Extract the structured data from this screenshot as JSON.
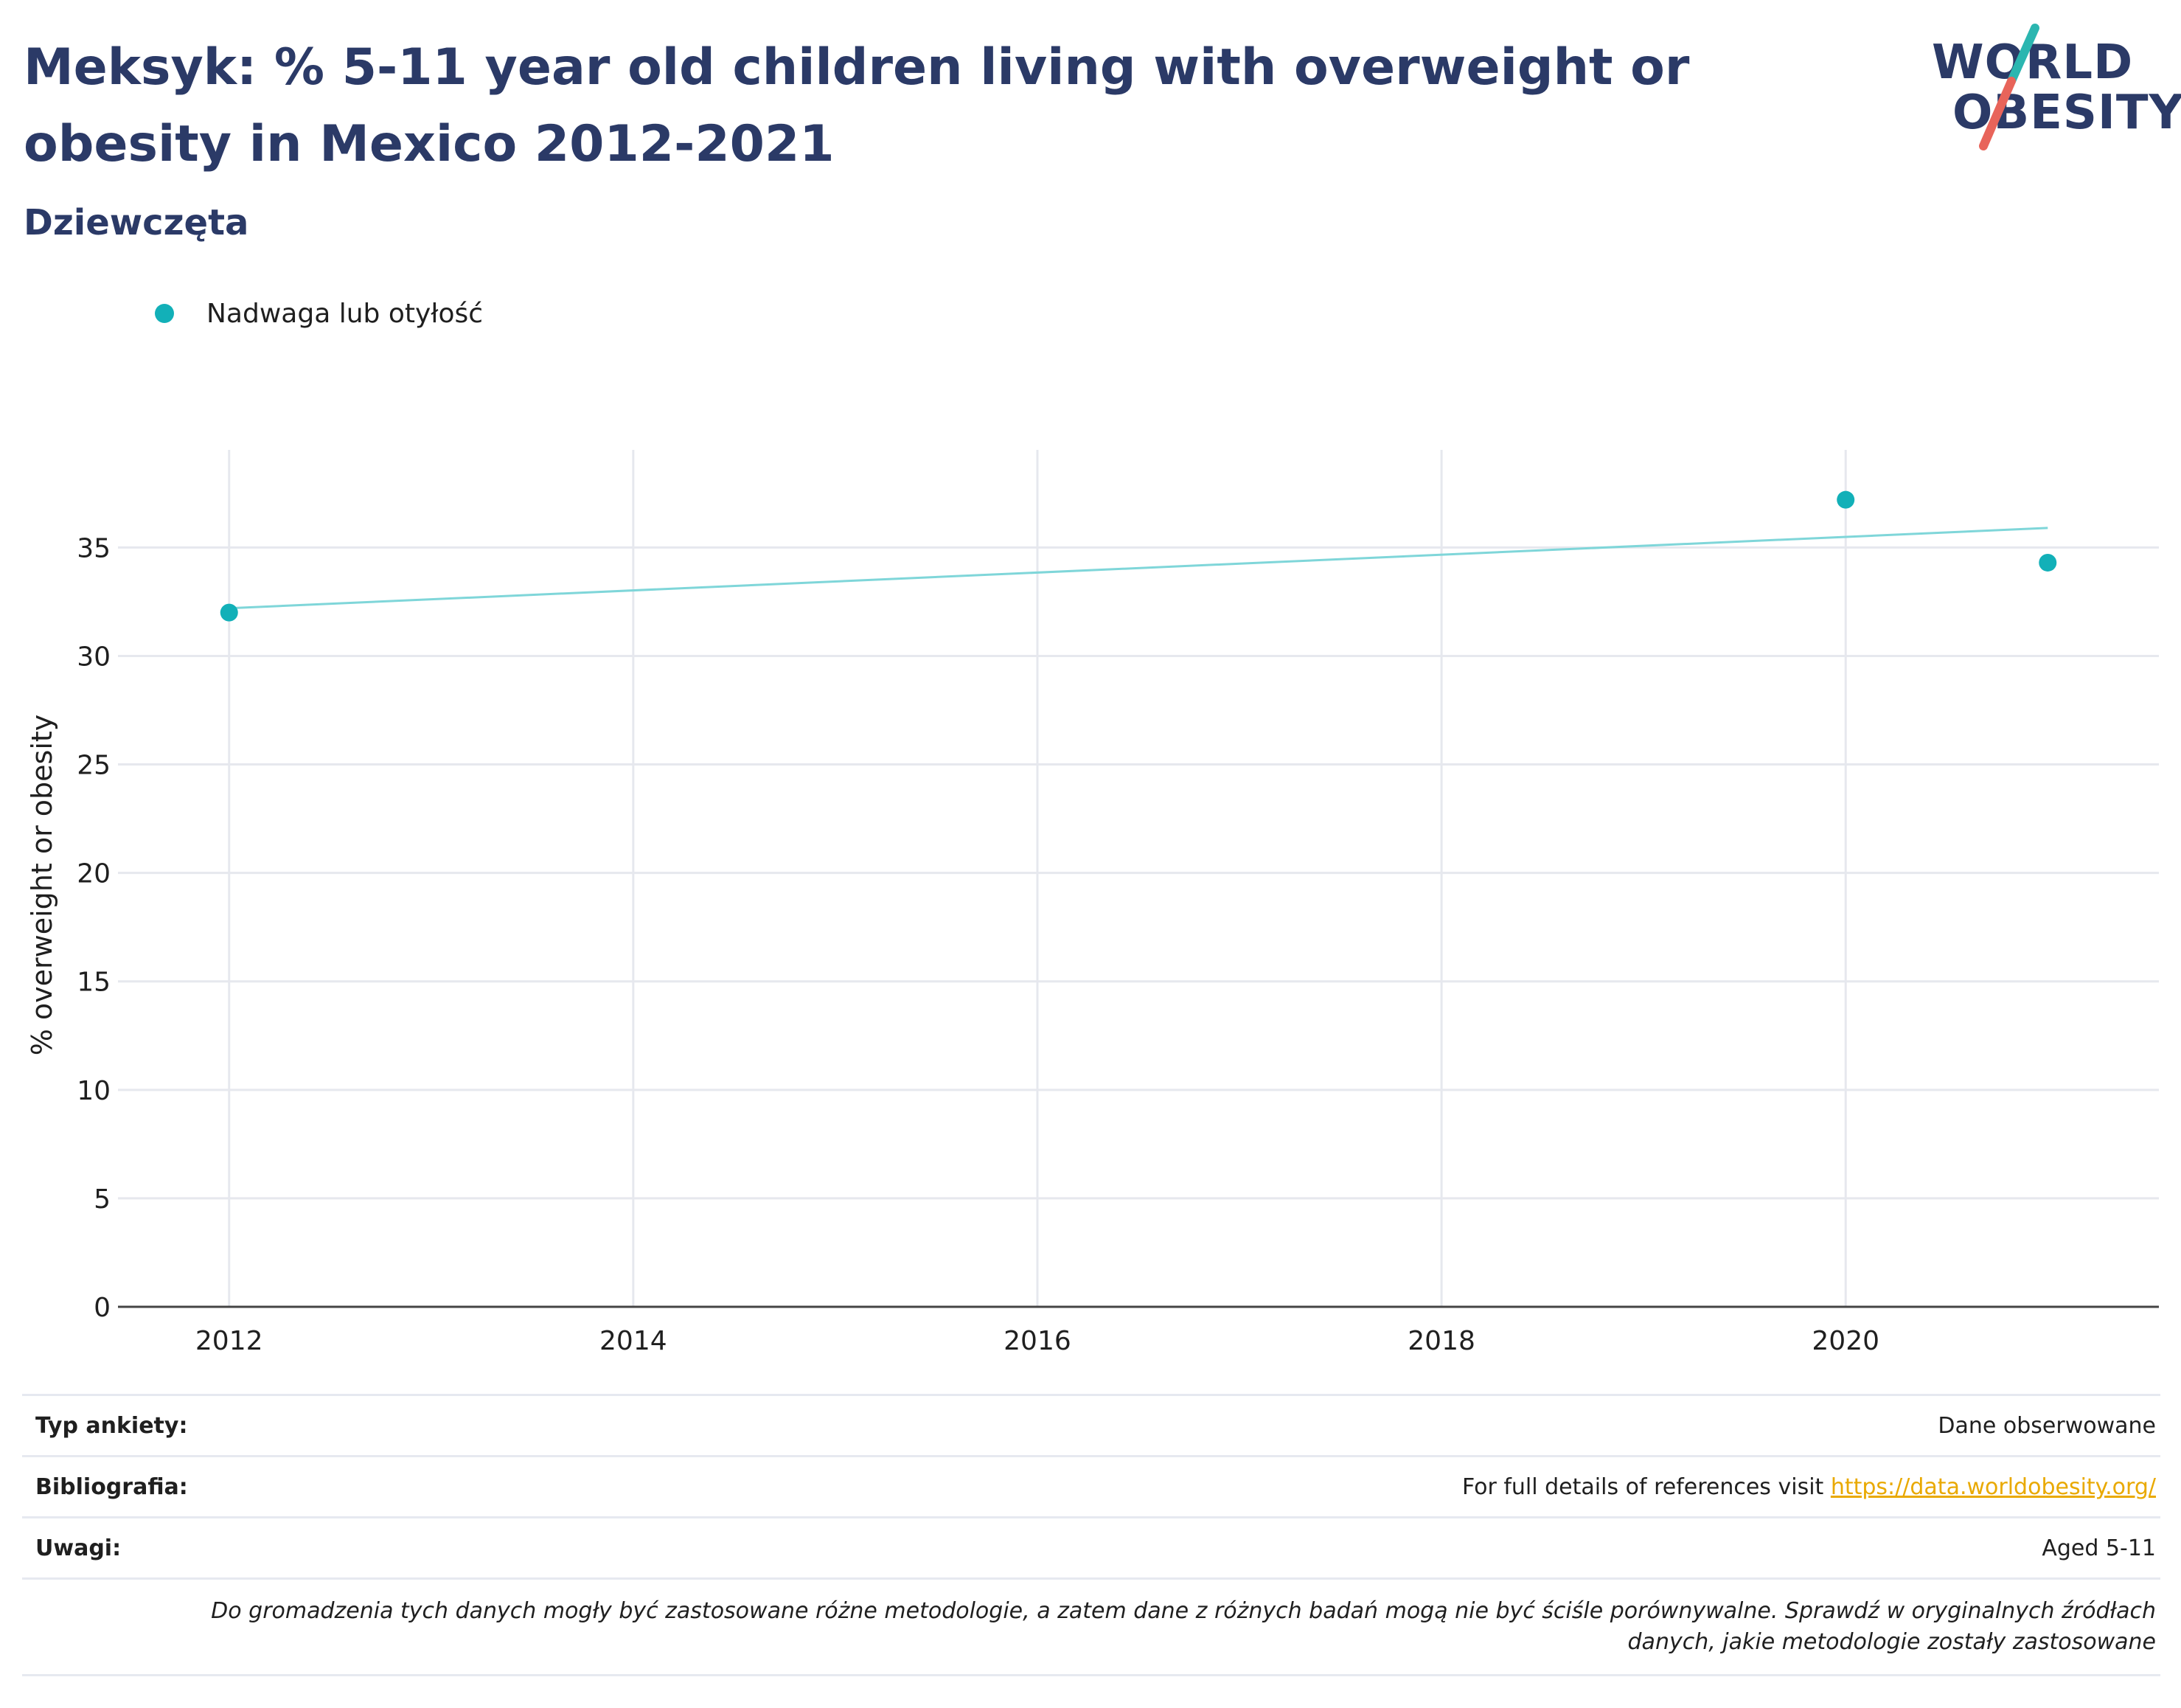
{
  "header": {
    "title": "Meksyk: % 5-11 year old children living with overweight or obesity in Mexico 2012-2021",
    "subtitle": "Dziewczęta"
  },
  "logo": {
    "line1": "WORLD",
    "line2": "OBESITY"
  },
  "colors": {
    "title": "#2b3a67",
    "series": "#12b0b8",
    "trend": "#7fd6d9",
    "link": "#e9a900",
    "slash_top": "#2bb6b0",
    "slash_bottom": "#e8645a"
  },
  "chart_data": {
    "type": "scatter",
    "title": "",
    "xlabel": "",
    "ylabel": "% overweight or obesity",
    "xlim": [
      2011.45,
      2021.55
    ],
    "ylim": [
      0,
      39.5
    ],
    "x_ticks": [
      2012,
      2014,
      2016,
      2018,
      2020
    ],
    "y_ticks": [
      0,
      5,
      10,
      15,
      20,
      25,
      30,
      35
    ],
    "grid": true,
    "legend_position": "top-left",
    "series": [
      {
        "name": "Nadwaga lub otyłość",
        "x": [
          2012,
          2020,
          2021
        ],
        "y": [
          32.0,
          37.2,
          34.3
        ]
      }
    ],
    "trendline": {
      "x": [
        2012,
        2021
      ],
      "y": [
        32.2,
        35.9
      ]
    }
  },
  "info": {
    "survey_type_label": "Typ ankiety:",
    "survey_type_value": "Dane obserwowane",
    "bibliography_label": "Bibliografia:",
    "bibliography_text": "For full details of references visit ",
    "bibliography_link": "https://data.worldobesity.org/",
    "notes_label": "Uwagi:",
    "notes_value": "Aged 5-11",
    "disclaimer_line1": "Do gromadzenia tych danych mogły być zastosowane różne metodologie, a zatem dane z różnych badań mogą nie być ściśle porównywalne. Sprawdź w oryginalnych źródłach",
    "disclaimer_line2": "danych, jakie metodologie zostały zastosowane"
  }
}
